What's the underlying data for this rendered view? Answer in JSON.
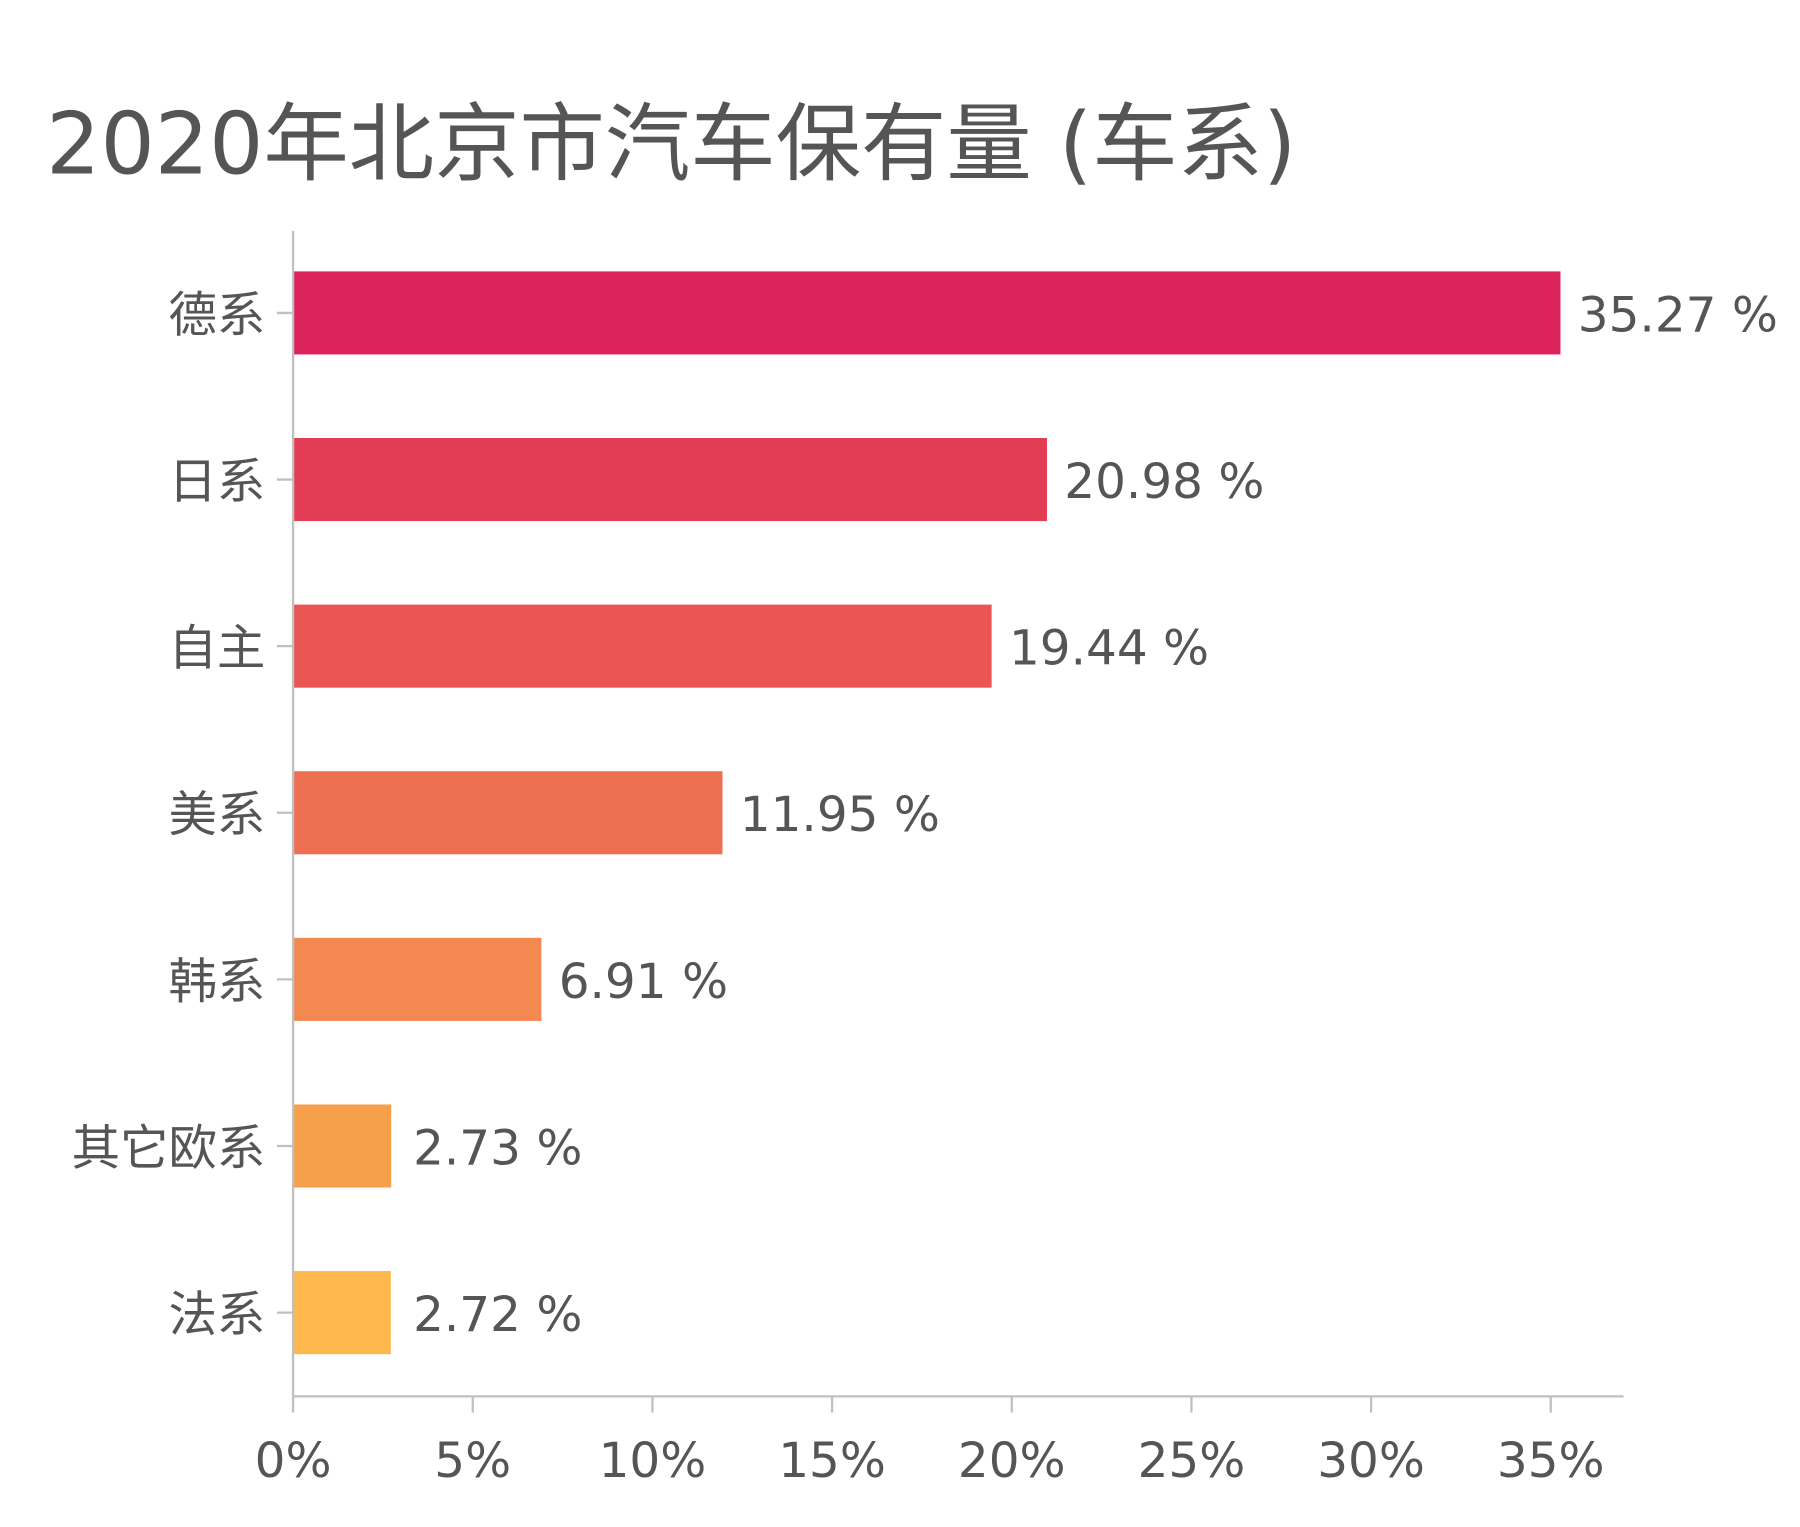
{
  "chart_data": {
    "type": "bar",
    "orientation": "horizontal",
    "title": "2020年北京市汽车保有量 (车系)",
    "xlabel": "",
    "ylabel": "",
    "categories": [
      "德系",
      "日系",
      "自主",
      "美系",
      "韩系",
      "其它欧系",
      "法系"
    ],
    "values": [
      35.27,
      20.98,
      19.44,
      11.95,
      6.91,
      2.73,
      2.72
    ],
    "data_labels": [
      "35.27 %",
      "20.98 %",
      "19.44 %",
      "11.95 %",
      "6.91 %",
      "2.73 %",
      "2.72 %"
    ],
    "colors": [
      "#DC245A",
      "#E33D55",
      "#E85552",
      "#EE7052",
      "#F38850",
      "#F7A04C",
      "#FEB74D"
    ],
    "xlim": [
      0,
      37
    ],
    "xticks": [
      0,
      5,
      10,
      15,
      20,
      25,
      30,
      35
    ],
    "xtick_labels": [
      "0%",
      "5%",
      "10%",
      "15%",
      "20%",
      "25%",
      "30%",
      "35%"
    ],
    "grid": false,
    "legend": "none"
  }
}
